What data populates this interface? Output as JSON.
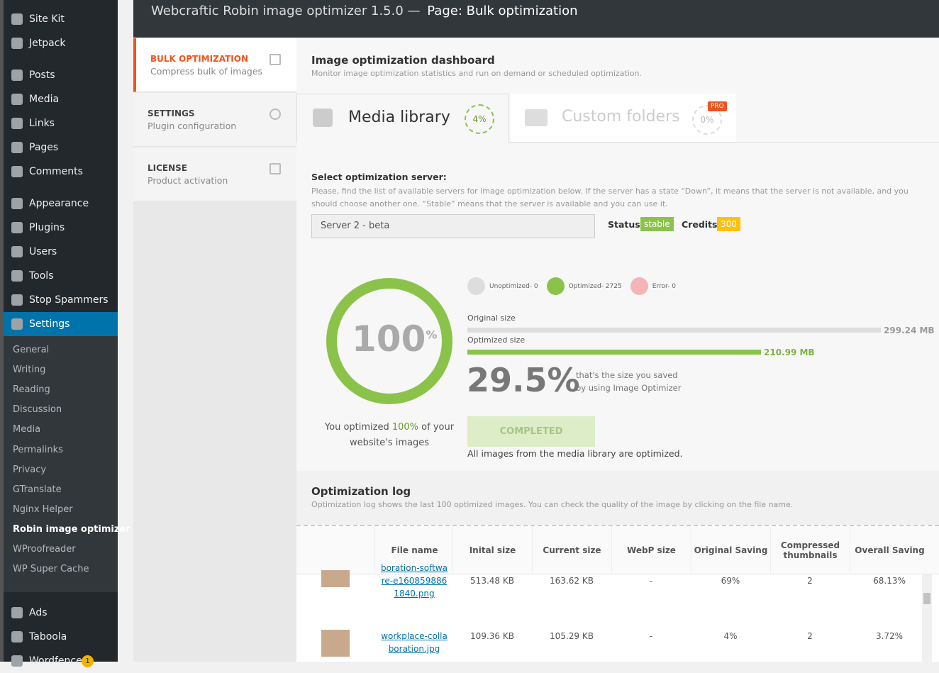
{
  "sidebar": {
    "groups": [
      [
        "Site Kit",
        "Jetpack"
      ],
      [
        "Posts",
        "Media",
        "Links",
        "Pages",
        "Comments"
      ],
      [
        "Appearance",
        "Plugins",
        "Users",
        "Tools",
        "Stop Spammers",
        "Settings"
      ]
    ],
    "submenu": [
      "General",
      "Writing",
      "Reading",
      "Discussion",
      "Media",
      "Permalinks",
      "Privacy",
      "GTranslate",
      "Nginx Helper",
      "Robin image optimizer",
      "WProofreader",
      "WP Super Cache"
    ],
    "bottom": [
      "Ads",
      "Taboola",
      "Wordfence"
    ],
    "badge": "1"
  },
  "header": {
    "title": "Webcraftic Robin image optimizer 1.5.0 —",
    "page": "Page: Bulk optimization"
  },
  "nav": [
    {
      "title": "BULK OPTIMIZATION",
      "subtitle": "Compress bulk of images"
    },
    {
      "title": "SETTINGS",
      "subtitle": "Plugin configuration"
    },
    {
      "title": "LICENSE",
      "subtitle": "Product activation"
    }
  ],
  "dashboard": {
    "title": "Image optimization dashboard",
    "description": "Monitor image optimization statistics and run on demand or scheduled optimization."
  },
  "tabs": [
    {
      "label": "Media library",
      "percent": "4%"
    },
    {
      "label": "Custom folders",
      "percent": "0%",
      "badge": "PRO"
    }
  ],
  "server": {
    "label": "Select optimization server:",
    "description": "Please, find the list of available servers for image optimization below. If the server has a state “Down”, it means that the server is not available, and you should choose another one. “Stable” means that the server is available and you can use it.",
    "selected": "Server 2 - beta",
    "status_label": "Status:",
    "status": "stable",
    "credits_label": "Credits:",
    "credits": "300"
  },
  "stats": {
    "circle_value": "100",
    "circle_unit": "%",
    "legend": [
      "Unoptimized- 0",
      "Optimized- 2725",
      "Error- 0"
    ],
    "original_label": "Original size",
    "original_size": "299.24 MB",
    "optimized_label": "Optimized size",
    "optimized_size": "210.99 MB",
    "saved": "29.5%",
    "saved_text": [
      "that's the size you saved",
      "by using Image Optimizer"
    ],
    "summary_prefix": "You optimized",
    "summary_value": "100%",
    "summary_suffix": "of your website's images",
    "button": "COMPLETED",
    "note": "All images from the media library are optimized."
  },
  "log": {
    "title": "Optimization log",
    "description": "Optimization log shows the last 100 optimized images. You can check the quality of the image by clicking on the file name.",
    "columns": [
      "File name",
      "Inital size",
      "Current size",
      "WebP size",
      "Original Saving",
      "Compressed thumbnails",
      "Overall Saving"
    ],
    "rows": [
      [
        "boration-software-e1608598861840.png",
        "513.48 KB",
        "163.62 KB",
        "-",
        "69%",
        "2",
        "68.13%"
      ],
      [
        "workplace-collaboration.jpg",
        "109.36 KB",
        "105.29 KB",
        "-",
        "4%",
        "2",
        "3.72%"
      ]
    ]
  }
}
